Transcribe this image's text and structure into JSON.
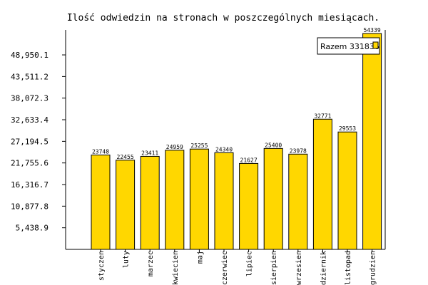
{
  "chart_data": {
    "type": "bar",
    "title": "Ilość odwiedzin na stronach w poszczególnych miesiącach.",
    "xlabel": "",
    "ylabel": "",
    "categories": [
      "styczen",
      "luty",
      "marzec",
      "kwiecien",
      "maj",
      "czerwiec",
      "lipiec",
      "sierpien",
      "wrzesien",
      "pazdziernik",
      "listopad",
      "grudzien"
    ],
    "series": [
      {
        "name": "Razem 331836",
        "values": [
          23748,
          22455,
          23411,
          24959,
          25255,
          24340,
          21627,
          25400,
          23978,
          32771,
          29553,
          54339
        ]
      }
    ],
    "value_labels": [
      "23748",
      "22455",
      "23411",
      "24959",
      "25255",
      "24340",
      "21627",
      "25400",
      "23978",
      "32771",
      "29553",
      "54339"
    ],
    "y_ticks": [
      {
        "value": 5438.9,
        "label": "5,438.9"
      },
      {
        "value": 10877.8,
        "label": "10,877.8"
      },
      {
        "value": 16316.7,
        "label": "16,316.7"
      },
      {
        "value": 21755.6,
        "label": "21,755.6"
      },
      {
        "value": 27194.5,
        "label": "27,194.5"
      },
      {
        "value": 32633.4,
        "label": "32,633.4"
      },
      {
        "value": 38072.3,
        "label": "38,072.3"
      },
      {
        "value": 43511.2,
        "label": "43,511.2"
      },
      {
        "value": 48950.1,
        "label": "48,950.1"
      }
    ],
    "ylim": [
      0,
      54339
    ],
    "grid": false,
    "legend_position": "top-right",
    "colors": {
      "bar_fill": "#FFD700",
      "bar_stroke": "#000000",
      "axis": "#000000"
    }
  }
}
